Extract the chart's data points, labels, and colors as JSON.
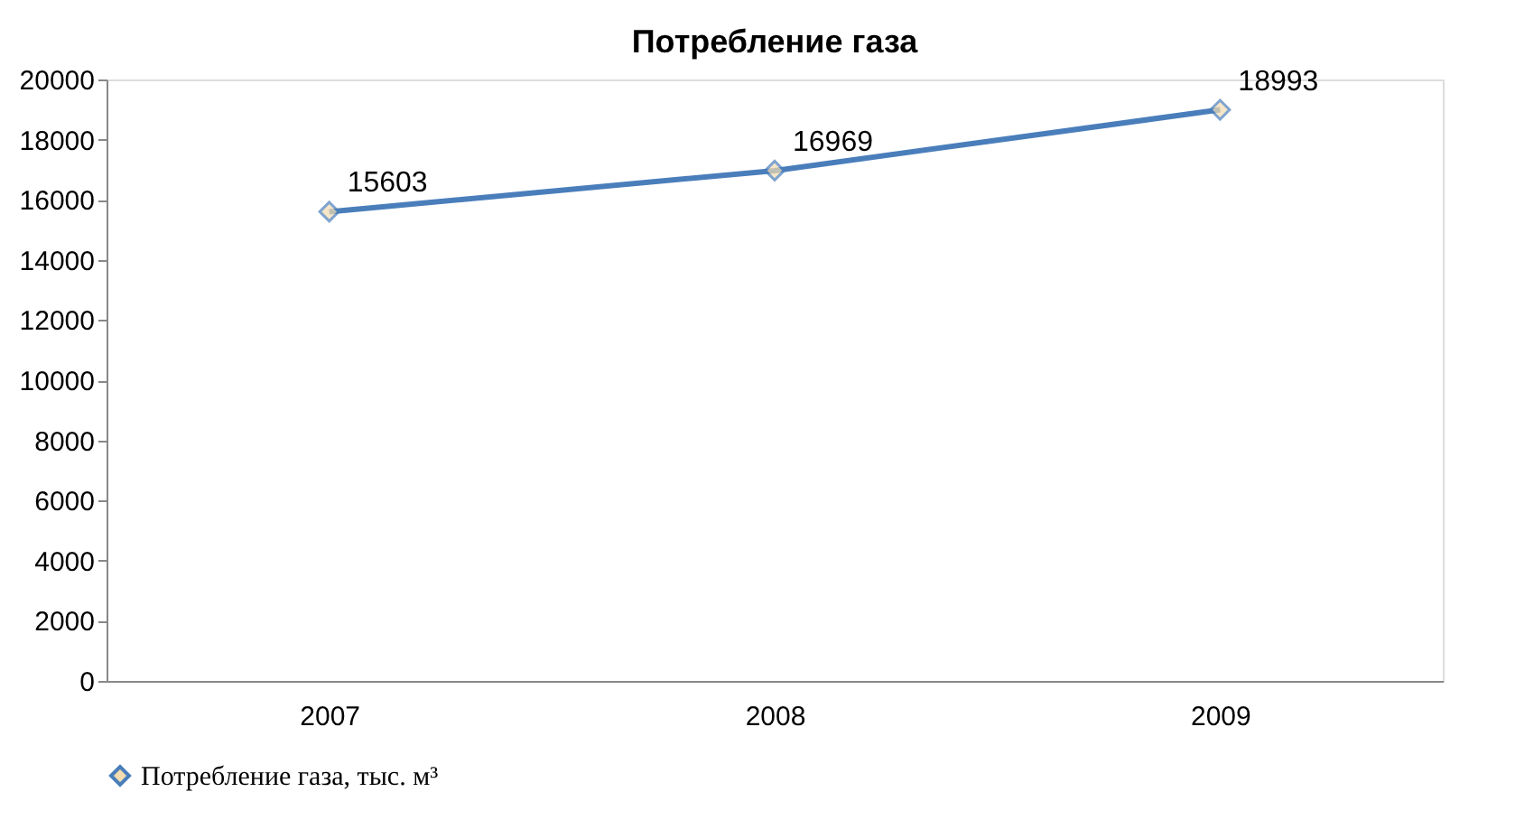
{
  "chart_data": {
    "type": "line",
    "title": "Потребление газа",
    "categories": [
      "2007",
      "2008",
      "2009"
    ],
    "series": [
      {
        "name": "Потребление газа,  тыс. м³",
        "color": "#4a7ebb",
        "values": [
          15603,
          16969,
          18993
        ]
      }
    ],
    "ylim": [
      0,
      20000
    ],
    "yticks": [
      0,
      2000,
      4000,
      6000,
      8000,
      10000,
      12000,
      14000,
      16000,
      18000,
      20000
    ],
    "grid": false,
    "legend": "bottom",
    "marker": "diamond",
    "line_style": "solid",
    "data_labels": true
  }
}
